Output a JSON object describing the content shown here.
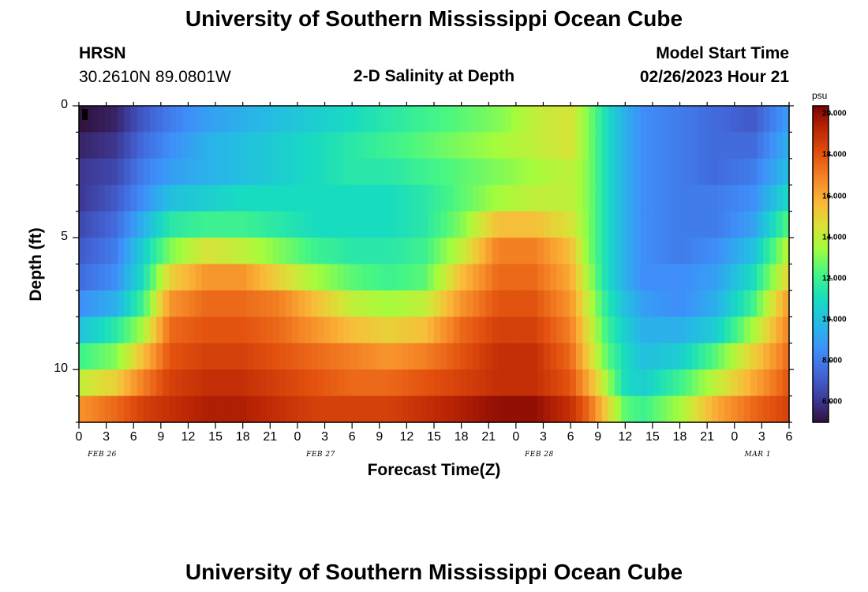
{
  "page": {
    "title": "University of Southern Mississippi Ocean Cube",
    "title_repeat": "University of Southern Mississippi Ocean Cube",
    "station": "HRSN",
    "coords": "30.2610N  89.0801W",
    "subtitle": "2-D Salinity at Depth",
    "model_label": "Model Start Time",
    "model_time": "02/26/2023 Hour 21"
  },
  "chart_data": {
    "type": "heatmap",
    "title": "2-D Salinity at Depth",
    "xlabel": "Forecast Time(Z)",
    "ylabel": "Depth (ft)",
    "x_tick_labels": [
      "0",
      "3",
      "6",
      "9",
      "12",
      "15",
      "18",
      "21",
      "0",
      "3",
      "6",
      "9",
      "12",
      "15",
      "18",
      "21",
      "0",
      "3",
      "6",
      "9",
      "12",
      "15",
      "18",
      "21",
      "0",
      "3",
      "6"
    ],
    "x_hours_range": [
      0,
      78
    ],
    "date_labels": [
      {
        "label": "FEB 26",
        "hour": 12
      },
      {
        "label": "FEB 27",
        "hour": 36
      },
      {
        "label": "FEB 28",
        "hour": 60
      },
      {
        "label": "MAR 1",
        "hour": 84
      }
    ],
    "y_ticks": [
      0,
      5,
      10
    ],
    "ylim": [
      0,
      12
    ],
    "depth_levels": [
      0.5,
      1.5,
      2.5,
      3.5,
      4.5,
      5.5,
      6.5,
      7.5,
      8.5,
      9.5,
      10.5,
      11.5
    ],
    "time_hours": [
      0,
      4,
      7,
      10,
      14,
      18,
      22,
      26,
      30,
      34,
      38,
      42,
      46,
      50,
      54,
      56,
      58,
      60,
      62,
      66,
      70,
      74,
      78
    ],
    "salinity_psu": [
      [
        5.0,
        5.5,
        7.0,
        8.0,
        9.0,
        9.5,
        10.0,
        10.5,
        11.0,
        11.5,
        12.0,
        12.5,
        13.0,
        14.0,
        14.5,
        13.0,
        11.0,
        9.5,
        8.5,
        8.0,
        7.5,
        7.0,
        9.0
      ],
      [
        5.5,
        6.0,
        7.5,
        8.5,
        9.5,
        10.0,
        10.5,
        11.0,
        11.5,
        12.0,
        12.5,
        13.0,
        13.5,
        14.0,
        14.5,
        13.0,
        11.0,
        9.5,
        8.5,
        8.0,
        7.5,
        7.5,
        9.5
      ],
      [
        6.0,
        6.5,
        8.0,
        9.0,
        9.5,
        10.0,
        10.5,
        11.0,
        11.5,
        11.5,
        12.0,
        12.5,
        13.0,
        13.5,
        14.0,
        13.0,
        11.0,
        9.5,
        8.5,
        8.0,
        7.5,
        8.0,
        10.0
      ],
      [
        6.0,
        7.0,
        8.5,
        10.0,
        10.5,
        11.0,
        11.0,
        11.0,
        11.0,
        11.0,
        11.5,
        12.5,
        13.5,
        14.0,
        14.0,
        13.0,
        11.0,
        9.5,
        8.5,
        8.0,
        8.0,
        8.5,
        11.0
      ],
      [
        6.5,
        7.5,
        9.5,
        11.5,
        12.0,
        12.0,
        11.5,
        11.0,
        11.0,
        11.0,
        11.5,
        13.0,
        15.5,
        15.5,
        14.5,
        13.0,
        11.0,
        9.5,
        8.5,
        8.0,
        8.0,
        9.0,
        12.5
      ],
      [
        7.0,
        8.0,
        10.5,
        13.0,
        14.5,
        14.0,
        13.0,
        12.0,
        11.5,
        11.5,
        12.0,
        14.0,
        17.0,
        17.0,
        15.5,
        13.0,
        11.0,
        9.5,
        8.5,
        8.0,
        8.5,
        10.0,
        14.0
      ],
      [
        7.5,
        8.5,
        11.0,
        15.0,
        16.5,
        16.5,
        15.0,
        13.5,
        12.5,
        12.0,
        12.5,
        15.5,
        17.5,
        17.5,
        16.0,
        13.5,
        11.0,
        9.5,
        8.5,
        8.5,
        9.0,
        11.0,
        15.0
      ],
      [
        8.5,
        9.5,
        12.0,
        16.5,
        17.5,
        17.5,
        17.0,
        15.5,
        14.0,
        13.5,
        14.0,
        16.5,
        18.0,
        18.0,
        16.5,
        14.0,
        11.5,
        10.0,
        9.0,
        8.5,
        9.5,
        12.0,
        16.5
      ],
      [
        10.0,
        11.5,
        13.5,
        17.5,
        18.0,
        18.0,
        17.5,
        16.5,
        15.5,
        15.0,
        15.5,
        17.5,
        18.5,
        18.5,
        17.0,
        14.5,
        12.0,
        10.5,
        9.5,
        9.5,
        10.5,
        13.5,
        17.0
      ],
      [
        12.0,
        13.0,
        15.5,
        18.0,
        18.5,
        18.5,
        18.0,
        17.5,
        17.0,
        16.5,
        17.0,
        18.0,
        19.0,
        19.0,
        17.5,
        15.0,
        12.5,
        11.0,
        10.0,
        10.5,
        12.5,
        15.0,
        17.5
      ],
      [
        14.0,
        15.0,
        17.0,
        18.5,
        19.0,
        19.0,
        18.5,
        18.0,
        17.5,
        17.5,
        18.0,
        18.5,
        19.0,
        19.0,
        18.0,
        16.0,
        13.5,
        11.0,
        10.5,
        12.0,
        14.0,
        16.0,
        18.0
      ],
      [
        16.5,
        17.5,
        18.5,
        19.0,
        19.5,
        19.5,
        19.0,
        18.5,
        18.5,
        18.5,
        19.0,
        19.5,
        20.0,
        20.0,
        19.0,
        17.5,
        15.0,
        12.5,
        12.0,
        13.5,
        16.0,
        17.5,
        18.5
      ]
    ],
    "colorbar": {
      "unit": "psu",
      "min": 5.0,
      "max": 20.4,
      "tick_values": [
        6,
        8,
        10,
        12,
        14,
        16,
        18,
        20
      ],
      "tick_labels": [
        "6.000",
        "8.000",
        "10.000",
        "12.000",
        "14.000",
        "16.000",
        "18.000",
        "20.000"
      ]
    }
  }
}
